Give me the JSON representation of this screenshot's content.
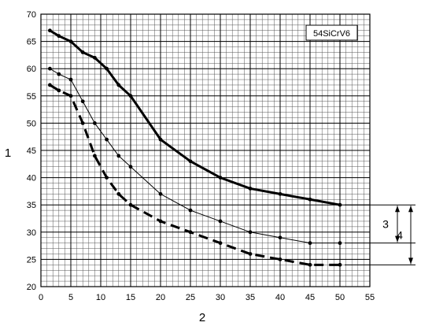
{
  "chart_data": {
    "type": "line",
    "title": "",
    "xlabel": "2",
    "ylabel": "1",
    "xlim": [
      0,
      55
    ],
    "ylim": [
      20,
      70
    ],
    "grid": true,
    "x_ticks": [
      "0",
      "5",
      "10",
      "15",
      "20",
      "25",
      "30",
      "35",
      "40",
      "45",
      "50",
      "55"
    ],
    "y_ticks": [
      "20",
      "25",
      "30",
      "35",
      "40",
      "45",
      "50",
      "55",
      "60",
      "65",
      "70"
    ],
    "legend_box": "54SiCrV6",
    "series": [
      {
        "style": "thick-solid",
        "x": [
          1.5,
          3,
          5,
          7,
          9,
          11,
          13,
          15,
          20,
          25,
          30,
          35,
          40,
          45,
          50
        ],
        "y": [
          67,
          66,
          65,
          63,
          62,
          60,
          57,
          55,
          47,
          43,
          40,
          38,
          37,
          36,
          35
        ]
      },
      {
        "style": "thin-solid",
        "x": [
          1.5,
          3,
          5,
          7,
          9,
          11,
          13,
          15,
          20,
          25,
          30,
          35,
          40,
          45,
          50
        ],
        "y": [
          60,
          59,
          58,
          54,
          50,
          47,
          44,
          42,
          37,
          34,
          32,
          30,
          29,
          28,
          28
        ]
      },
      {
        "style": "thick-dashed",
        "x": [
          1.5,
          3,
          5,
          7,
          9,
          11,
          13,
          15,
          20,
          25,
          30,
          35,
          40,
          45,
          50
        ],
        "y": [
          57,
          56,
          55,
          50,
          44,
          40,
          37,
          35,
          32,
          30,
          28,
          26,
          25,
          24,
          24
        ]
      }
    ],
    "annotations": [
      {
        "label": "3",
        "from": 35,
        "to": 28
      },
      {
        "label": "4",
        "from": 35,
        "to": 24
      }
    ]
  }
}
